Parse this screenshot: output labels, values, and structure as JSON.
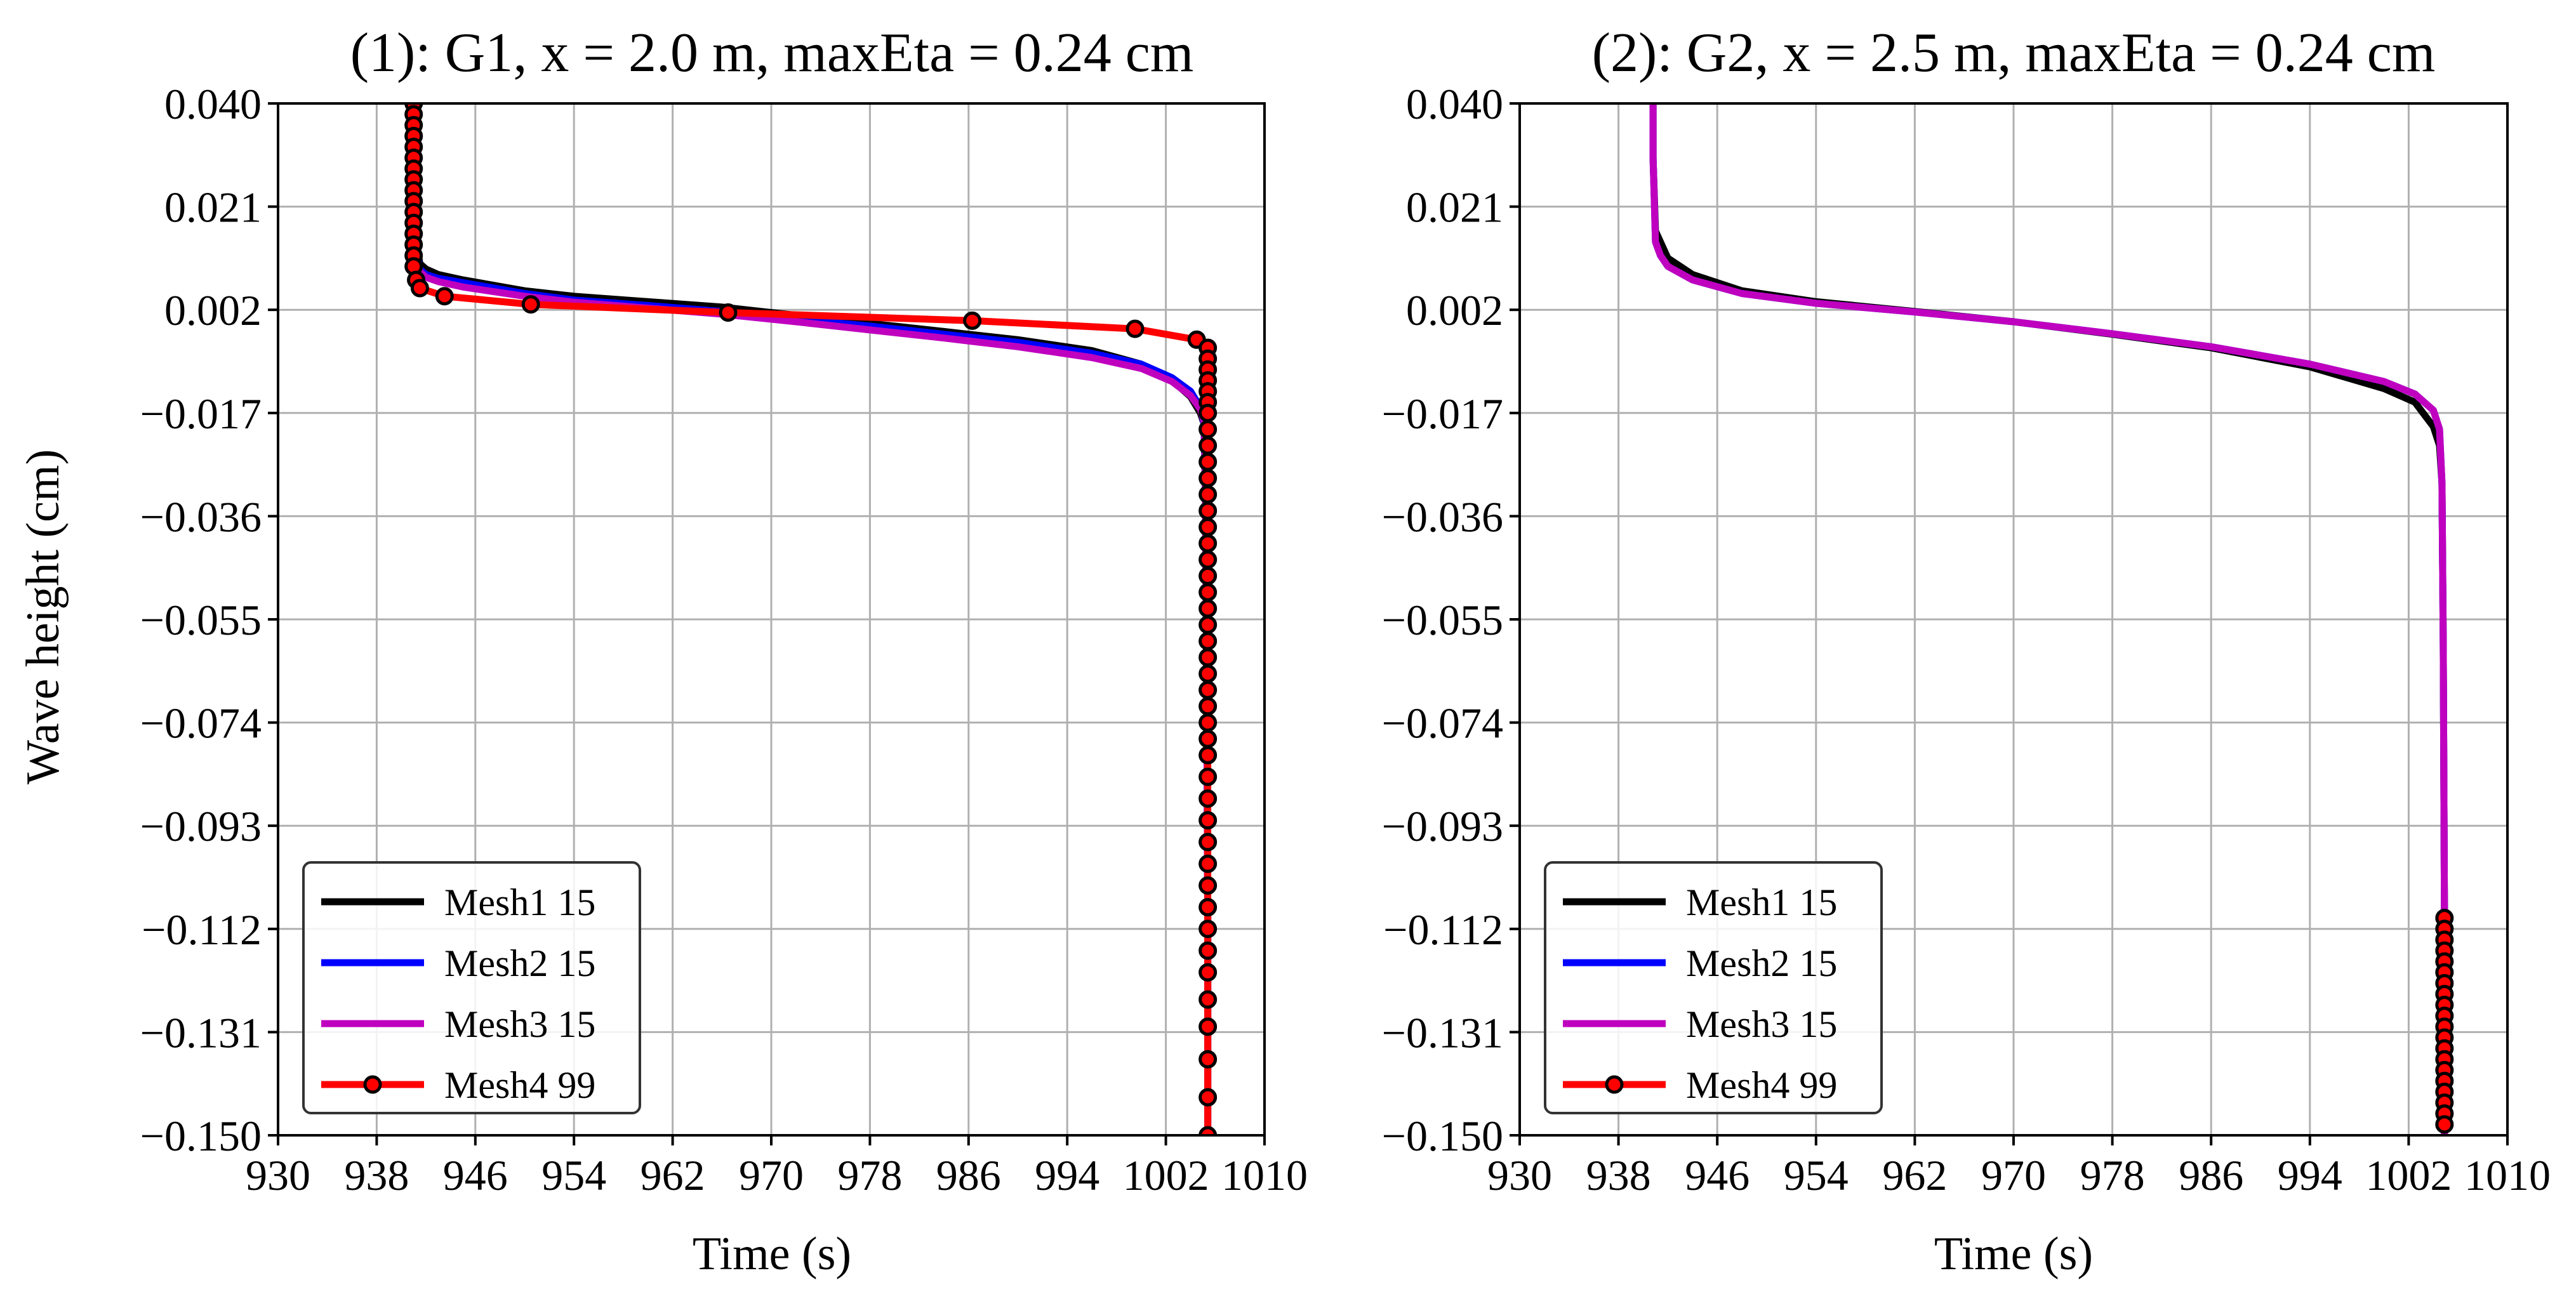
{
  "figure": {
    "background": "#ffffff"
  },
  "chart_data": [
    {
      "type": "line",
      "title": "(1): G1, x = 2.0 m, maxEta = 0.24 cm",
      "xlabel": "Time (s)",
      "ylabel": "Wave height (cm)",
      "xlim": [
        930,
        1010
      ],
      "ylim": [
        -0.15,
        0.04
      ],
      "xticks": [
        930,
        938,
        946,
        954,
        962,
        970,
        978,
        986,
        994,
        1002,
        1010
      ],
      "xtick_labels": [
        "930",
        "938",
        "946",
        "954",
        "962",
        "970",
        "978",
        "986",
        "994",
        "1002",
        "1010"
      ],
      "yticks": [
        0.04,
        0.021,
        0.002,
        -0.017,
        -0.036,
        -0.055,
        -0.074,
        -0.093,
        -0.112,
        -0.131,
        -0.15
      ],
      "ytick_labels": [
        "0.040",
        "0.021",
        "0.002",
        "−0.017",
        "−0.036",
        "−0.055",
        "−0.074",
        "−0.093",
        "−0.112",
        "−0.131",
        "−0.150"
      ],
      "grid": true,
      "legend_position": "lower left",
      "series": [
        {
          "name": "Mesh1 15",
          "color": "#000000",
          "marker": "none",
          "x": [
            941,
            941,
            941.2,
            941.5,
            942,
            943,
            945,
            950,
            954,
            960,
            966,
            972,
            978,
            984,
            990,
            996,
            1000,
            1002.5,
            1004,
            1004.8,
            1005.1,
            1005.2,
            1005.3,
            1005.4,
            1005.4
          ],
          "y": [
            0.04,
            0.03,
            0.015,
            0.0105,
            0.0095,
            0.0085,
            0.0075,
            0.0055,
            0.0045,
            0.0035,
            0.0025,
            0.001,
            -0.0005,
            -0.002,
            -0.0035,
            -0.0055,
            -0.008,
            -0.011,
            -0.014,
            -0.017,
            -0.019,
            -0.03,
            -0.06,
            -0.11,
            -0.15
          ]
        },
        {
          "name": "Mesh2 15",
          "color": "#0000ff",
          "marker": "none",
          "x": [
            941,
            941,
            941.2,
            941.5,
            942,
            943,
            945,
            950,
            954,
            960,
            966,
            972,
            978,
            984,
            990,
            996,
            1000,
            1002.5,
            1004,
            1004.8,
            1005.1,
            1005.2,
            1005.3,
            1005.4,
            1005.4
          ],
          "y": [
            0.04,
            0.03,
            0.013,
            0.0095,
            0.0085,
            0.0078,
            0.007,
            0.005,
            0.0038,
            0.0028,
            0.0017,
            0.0003,
            -0.001,
            -0.0025,
            -0.004,
            -0.006,
            -0.008,
            -0.0105,
            -0.013,
            -0.016,
            -0.019,
            -0.03,
            -0.06,
            -0.11,
            -0.15
          ]
        },
        {
          "name": "Mesh3 15",
          "color": "#bf00bf",
          "marker": "none",
          "x": [
            941,
            941,
            941.2,
            941.5,
            942,
            943,
            945,
            950,
            954,
            960,
            966,
            972,
            978,
            984,
            990,
            996,
            1000,
            1002.5,
            1004,
            1004.8,
            1005.1,
            1005.2,
            1005.3,
            1005.4,
            1005.4
          ],
          "y": [
            0.04,
            0.03,
            0.012,
            0.009,
            0.008,
            0.0072,
            0.0062,
            0.0045,
            0.0034,
            0.0023,
            0.0012,
            -0.0002,
            -0.0017,
            -0.0032,
            -0.0048,
            -0.0068,
            -0.0088,
            -0.0112,
            -0.0138,
            -0.0163,
            -0.0185,
            -0.03,
            -0.06,
            -0.11,
            -0.15
          ]
        },
        {
          "name": "Mesh4 99",
          "color": "#ff0000",
          "marker": "o",
          "marker_edge": "#000000",
          "x": [
            941,
            941,
            941,
            941,
            941,
            941,
            941,
            941,
            941,
            941,
            941,
            941,
            941,
            941,
            941,
            941,
            941.2,
            941.5,
            943.5,
            950.5,
            966.5,
            986.3,
            999.5,
            1004.5,
            1005.4,
            1005.4,
            1005.4,
            1005.4,
            1005.4,
            1005.4,
            1005.4,
            1005.4,
            1005.4,
            1005.4,
            1005.4,
            1005.4,
            1005.4,
            1005.4,
            1005.4,
            1005.4,
            1005.4,
            1005.4,
            1005.4,
            1005.4,
            1005.4,
            1005.4,
            1005.4,
            1005.4,
            1005.4,
            1005.4,
            1005.4,
            1005.4,
            1005.4,
            1005.4,
            1005.4,
            1005.4,
            1005.4,
            1005.4,
            1005.4,
            1005.4,
            1005.4,
            1005.4,
            1005.4,
            1005.4,
            1005.4,
            1005.4,
            1005.4
          ],
          "y": [
            0.04,
            0.038,
            0.036,
            0.034,
            0.032,
            0.03,
            0.028,
            0.026,
            0.024,
            0.022,
            0.02,
            0.018,
            0.016,
            0.014,
            0.012,
            0.01,
            0.0075,
            0.006,
            0.0045,
            0.003,
            0.0015,
            0.0,
            -0.0015,
            -0.0035,
            -0.005,
            -0.007,
            -0.009,
            -0.011,
            -0.013,
            -0.015,
            -0.017,
            -0.02,
            -0.023,
            -0.026,
            -0.029,
            -0.032,
            -0.035,
            -0.038,
            -0.041,
            -0.044,
            -0.047,
            -0.05,
            -0.053,
            -0.056,
            -0.059,
            -0.062,
            -0.065,
            -0.068,
            -0.071,
            -0.074,
            -0.077,
            -0.08,
            -0.084,
            -0.088,
            -0.092,
            -0.096,
            -0.1,
            -0.104,
            -0.108,
            -0.112,
            -0.116,
            -0.12,
            -0.125,
            -0.13,
            -0.136,
            -0.143,
            -0.15
          ]
        }
      ]
    },
    {
      "type": "line",
      "title": "(2): G2, x = 2.5 m, maxEta = 0.24 cm",
      "xlabel": "Time (s)",
      "ylabel": "",
      "xlim": [
        930,
        1010
      ],
      "ylim": [
        -0.15,
        0.04
      ],
      "xticks": [
        930,
        938,
        946,
        954,
        962,
        970,
        978,
        986,
        994,
        1002,
        1010
      ],
      "xtick_labels": [
        "930",
        "938",
        "946",
        "954",
        "962",
        "970",
        "978",
        "986",
        "994",
        "1002",
        "1010"
      ],
      "yticks": [
        0.04,
        0.021,
        0.002,
        -0.017,
        -0.036,
        -0.055,
        -0.074,
        -0.093,
        -0.112,
        -0.131,
        -0.15
      ],
      "ytick_labels": [
        "0.040",
        "0.021",
        "0.002",
        "−0.017",
        "−0.036",
        "−0.055",
        "−0.074",
        "−0.093",
        "−0.112",
        "−0.131",
        "−0.150"
      ],
      "grid": true,
      "legend_position": "lower left",
      "series": [
        {
          "name": "Mesh1 15",
          "color": "#000000",
          "marker": "none",
          "x": [
            940.8,
            940.8,
            941,
            941.4,
            942,
            944,
            948,
            954,
            962,
            970,
            978,
            986,
            994,
            1000,
            1002.5,
            1004,
            1004.5,
            1004.7,
            1004.8,
            1004.9,
            1004.9
          ],
          "y": [
            0.04,
            0.03,
            0.0165,
            0.0145,
            0.0115,
            0.0085,
            0.0055,
            0.0035,
            0.0017,
            -0.0002,
            -0.0025,
            -0.005,
            -0.0085,
            -0.0125,
            -0.015,
            -0.0195,
            -0.023,
            -0.03,
            -0.06,
            -0.11,
            -0.15
          ]
        },
        {
          "name": "Mesh2 15",
          "color": "#0000ff",
          "marker": "none",
          "x": [
            940.8,
            940.8,
            941,
            941.4,
            942,
            944,
            948,
            954,
            962,
            970,
            978,
            986,
            994,
            1000,
            1002.5,
            1004,
            1004.5,
            1004.7,
            1004.8,
            1004.9,
            1004.9
          ],
          "y": [
            0.04,
            0.03,
            0.0145,
            0.012,
            0.01,
            0.0075,
            0.005,
            0.0032,
            0.0016,
            -0.0002,
            -0.0024,
            -0.0048,
            -0.008,
            -0.0112,
            -0.0135,
            -0.0165,
            -0.02,
            -0.03,
            -0.06,
            -0.11,
            -0.15
          ]
        },
        {
          "name": "Mesh3 15",
          "color": "#bf00bf",
          "marker": "none",
          "x": [
            940.8,
            940.8,
            941,
            941.4,
            942,
            944,
            948,
            954,
            962,
            970,
            978,
            986,
            994,
            1000,
            1002.5,
            1004,
            1004.5,
            1004.7,
            1004.8,
            1004.9,
            1004.9
          ],
          "y": [
            0.04,
            0.03,
            0.0145,
            0.012,
            0.01,
            0.0075,
            0.005,
            0.0032,
            0.0016,
            -0.0002,
            -0.0024,
            -0.0048,
            -0.008,
            -0.0112,
            -0.0135,
            -0.0165,
            -0.02,
            -0.03,
            -0.06,
            -0.11,
            -0.15
          ]
        },
        {
          "name": "Mesh4 99",
          "color": "#ff0000",
          "marker": "o",
          "marker_edge": "#000000",
          "x": [
            1004.9,
            1004.9,
            1004.9,
            1004.9,
            1004.9,
            1004.9,
            1004.9,
            1004.9,
            1004.9,
            1004.9,
            1004.9,
            1004.9,
            1004.9,
            1004.9,
            1004.9,
            1004.9,
            1004.9,
            1004.9,
            1004.9,
            1004.9
          ],
          "y": [
            -0.11,
            -0.112,
            -0.114,
            -0.116,
            -0.118,
            -0.12,
            -0.122,
            -0.124,
            -0.126,
            -0.128,
            -0.13,
            -0.132,
            -0.134,
            -0.136,
            -0.138,
            -0.14,
            -0.142,
            -0.144,
            -0.146,
            -0.148
          ]
        }
      ]
    }
  ]
}
